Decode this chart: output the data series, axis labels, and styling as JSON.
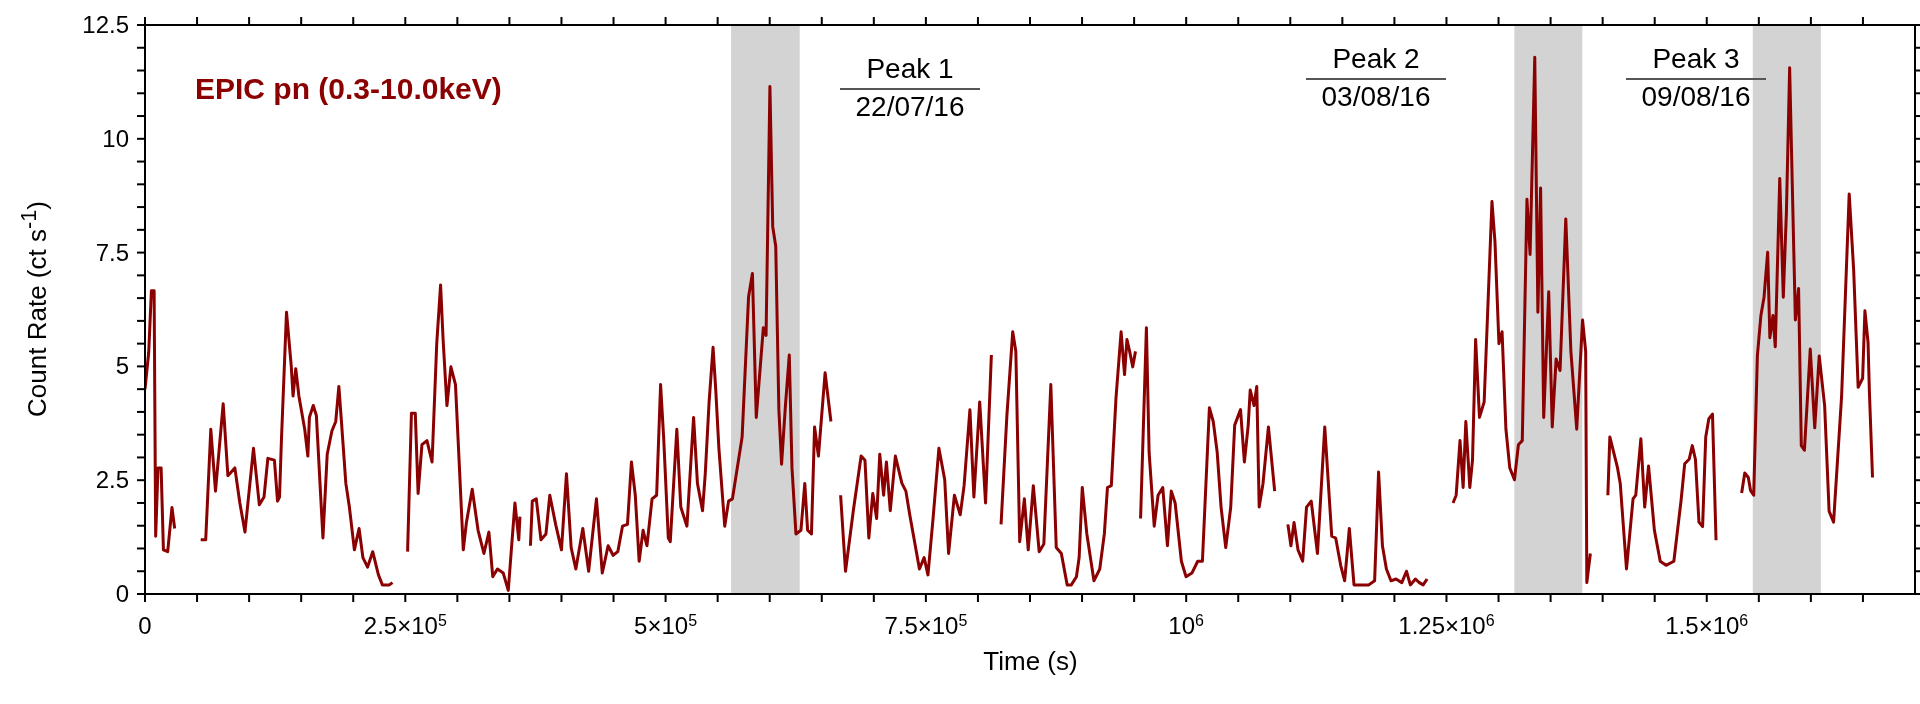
{
  "chart_data": {
    "type": "line",
    "xlabel": "Time (s)",
    "ylabel": "Count Rate (ct s$^{-1}$)",
    "annotations": [
      "Peak 1",
      "22/07/16",
      "Peak 2",
      "03/08/16",
      "Peak 3",
      "09/08/16"
    ],
    "xlim": [
      0,
      1700000
    ],
    "ylim": [
      0,
      12.5
    ],
    "xticks": [
      0,
      {
        "value": 50000,
        "label": null
      },
      {
        "value": 100000,
        "label": null
      },
      {
        "value": 150000,
        "label": null
      },
      {
        "value": 200000,
        "label": null
      },
      {
        "value": 250000,
        "label": "2.5×10$^{5}$"
      },
      {
        "value": 300000,
        "label": null
      },
      {
        "value": 350000,
        "label": null
      },
      {
        "value": 400000,
        "label": null
      },
      {
        "value": 450000,
        "label": null
      },
      {
        "value": 500000,
        "label": "5×10$^{5}$"
      },
      {
        "value": 550000,
        "label": null
      },
      {
        "value": 600000,
        "label": null
      },
      {
        "value": 650000,
        "label": null
      },
      {
        "value": 700000,
        "label": null
      },
      {
        "value": 750000,
        "label": "7.5×10$^{5}$"
      },
      {
        "value": 800000,
        "label": null
      },
      {
        "value": 850000,
        "label": null
      },
      {
        "value": 900000,
        "label": null
      },
      {
        "value": 950000,
        "label": null
      },
      {
        "value": 1000000,
        "label": "10$^{6}$"
      },
      {
        "value": 1050000,
        "label": null
      },
      {
        "value": 1100000,
        "label": null
      },
      {
        "value": 1150000,
        "label": null
      },
      {
        "value": 1200000,
        "label": null
      },
      {
        "value": 1250000,
        "label": "1.25×10$^{6}$"
      },
      {
        "value": 1300000,
        "label": null
      },
      {
        "value": 1350000,
        "label": null
      },
      {
        "value": 1400000,
        "label": null
      },
      {
        "value": 1450000,
        "label": null
      },
      {
        "value": 1500000,
        "label": "1.5×10$^{6}$"
      },
      {
        "value": 1550000,
        "label": null
      },
      {
        "value": 1600000,
        "label": null
      },
      {
        "value": 1650000,
        "label": null
      }
    ],
    "yticks": [
      0,
      {
        "value": 0.5,
        "label": null
      },
      {
        "value": 1,
        "label": null
      },
      {
        "value": 1.5,
        "label": null
      },
      {
        "value": 2,
        "label": null
      },
      2.5,
      {
        "value": 3,
        "label": null
      },
      {
        "value": 3.5,
        "label": null
      },
      {
        "value": 4,
        "label": null
      },
      {
        "value": 4.5,
        "label": null
      },
      5,
      {
        "value": 5.5,
        "label": null
      },
      {
        "value": 6,
        "label": null
      },
      {
        "value": 6.5,
        "label": null
      },
      {
        "value": 7,
        "label": null
      },
      7.5,
      {
        "value": 8,
        "label": null
      },
      {
        "value": 8.5,
        "label": null
      },
      {
        "value": 9,
        "label": null
      },
      {
        "value": 9.5,
        "label": null
      },
      10,
      {
        "value": 10.5,
        "label": null
      },
      {
        "value": 11,
        "label": null
      },
      {
        "value": 11.5,
        "label": null
      },
      {
        "value": 12,
        "label": null
      },
      12.5
    ],
    "bands": [
      {
        "axis": "x",
        "from": 562900,
        "to": 628800,
        "color": "#d3d3d3"
      },
      {
        "axis": "x",
        "from": 1315200,
        "to": 1380500,
        "color": "#d3d3d3"
      },
      {
        "axis": "x",
        "from": 1544200,
        "to": 1609600,
        "color": "#d3d3d3"
      }
    ],
    "marker": "none",
    "series": [
      {
        "name": "EPIC pn (0.3-10.0keV)",
        "color": "#8b0000",
        "x": [
          0,
          3540,
          6150,
          8760,
          10250,
          12490,
          15470,
          17700,
          21800,
          25900,
          28500,
          41000,
          53500,
          58300,
          63200,
          67700,
          75100,
          79600,
          86300,
          91100,
          96000,
          104200,
          109800,
          114300,
          118000,
          124300,
          127300,
          129200,
          131000,
          135900,
          140400,
          142200,
          144800,
          147800,
          153400,
          156400,
          157900,
          161600,
          164600,
          170900,
          175000,
          179500,
          183200,
          186200,
          188800,
          192900,
          196300,
          201100,
          205600,
          209300,
          213800,
          218700,
          224200,
          228000,
          234700,
          237700,
          245000,
          252200,
          255900,
          259600,
          262300,
          266000,
          270800,
          275700,
          280200,
          283900,
          286300,
          290000,
          293800,
          298200,
          302000,
          305700,
          308700,
          314300,
          319900,
          325500,
          330300,
          334000,
          338500,
          344100,
          348900,
          355300,
          359000,
          360100,
          365000,
          370200,
          372000,
          375800,
          380300,
          385100,
          388800,
          394400,
          400000,
          404800,
          409300,
          413800,
          420500,
          426100,
          433600,
          439200,
          444800,
          449600,
          454100,
          458600,
          463400,
          467200,
          470900,
          474600,
          478400,
          482100,
          487000,
          491400,
          495200,
          498200,
          502600,
          504500,
          510800,
          514600,
          520500,
          526900,
          530600,
          535500,
          538100,
          541800,
          545600,
          548200,
          551200,
          556800,
          560500,
          564200,
          573500,
          579700,
          583400,
          587100,
          593900,
          596500,
          600200,
          602900,
          605800,
          608800,
          611400,
          615100,
          618800,
          621400,
          625200,
          630000,
          633700,
          636400,
          640100,
          643100,
          646800,
          653200,
          658800,
          663000,
          668100,
          672800,
          680300,
          687800,
          691500,
          695200,
          699000,
          702700,
          705700,
          709400,
          712100,
          715800,
          720700,
          727000,
          730800,
          734500,
          738200,
          743800,
          748300,
          752000,
          756900,
          762500,
          768100,
          771800,
          777400,
          783000,
          786700,
          792300,
          796100,
          801700,
          807300,
          812900,
          817500,
          822200,
          827800,
          833400,
          836400,
          840100,
          844600,
          848300,
          853200,
          858800,
          863300,
          870000,
          875200,
          880100,
          885700,
          889700,
          894600,
          897200,
          900200,
          904600,
          911400,
          917000,
          921400,
          924400,
          928100,
          932600,
          937500,
          940800,
          943100,
          945700,
          948700,
          951300,
          953700,
          956200,
          961800,
          964400,
          969300,
          973000,
          977500,
          982000,
          985700,
          989400,
          995400,
          999900,
          1005500,
          1011100,
          1015600,
          1022300,
          1026000,
          1029800,
          1033500,
          1038000,
          1042800,
          1046600,
          1052200,
          1055900,
          1059600,
          1061500,
          1065200,
          1067800,
          1070100,
          1073800,
          1079000,
          1085000,
          1091000,
          1097700,
          1100600,
          1103600,
          1107400,
          1111900,
          1115600,
          1120100,
          1126100,
          1133100,
          1139800,
          1143600,
          1148400,
          1152200,
          1156700,
          1161200,
          1167900,
          1175400,
          1181000,
          1184800,
          1188500,
          1192300,
          1196700,
          1201500,
          1207100,
          1211600,
          1215300,
          1220200,
          1223900,
          1227600,
          1231400,
          1243000,
          1256300,
          1259300,
          1263000,
          1266000,
          1268600,
          1272400,
          1275000,
          1278000,
          1281700,
          1286200,
          1293700,
          1296600,
          1300400,
          1303400,
          1307100,
          1310800,
          1315300,
          1319100,
          1322800,
          1327300,
          1330300,
          1334800,
          1337800,
          1340400,
          1343400,
          1348200,
          1351600,
          1355300,
          1359100,
          1364600,
          1369500,
          1375100,
          1380700,
          1383700,
          1384800,
          1388200,
          1396000,
          1405000,
          1406900,
          1414300,
          1416900,
          1422900,
          1429200,
          1431800,
          1436700,
          1440400,
          1444100,
          1449700,
          1455300,
          1460900,
          1468400,
          1475400,
          1478800,
          1483100,
          1486100,
          1489100,
          1492500,
          1496000,
          1499000,
          1502000,
          1505500,
          1508900,
          1521000,
          1533500,
          1536500,
          1539900,
          1542100,
          1545100,
          1548600,
          1552000,
          1555000,
          1558500,
          1560600,
          1563600,
          1565800,
          1570100,
          1573500,
          1576500,
          1579600,
          1582100,
          1585100,
          1588200,
          1590800,
          1593800,
          1599400,
          1603700,
          1608000,
          1613200,
          1617500,
          1621800,
          1629500,
          1636800,
          1641100,
          1645400,
          1649700,
          1651900,
          1654900,
          1656200,
          1659200
        ],
        "values": [
          4.5,
          5.3,
          6.66,
          6.66,
          1.27,
          2.77,
          2.77,
          0.97,
          0.93,
          1.9,
          1.44,
          null,
          1.19,
          1.19,
          3.62,
          2.26,
          4.18,
          2.6,
          2.77,
          2.0,
          1.36,
          3.2,
          1.96,
          2.13,
          2.98,
          2.94,
          2.04,
          2.13,
          3.36,
          6.19,
          5.03,
          4.35,
          4.95,
          4.35,
          3.62,
          3.03,
          3.88,
          4.14,
          3.92,
          1.23,
          3.07,
          3.58,
          3.79,
          4.56,
          3.75,
          2.43,
          1.91,
          0.97,
          1.44,
          0.8,
          0.59,
          0.93,
          0.42,
          0.2,
          0.2,
          0.25,
          null,
          0.93,
          3.97,
          3.97,
          2.21,
          3.28,
          3.37,
          2.9,
          5.5,
          6.79,
          5.59,
          4.14,
          4.99,
          4.6,
          2.77,
          0.97,
          1.57,
          2.3,
          1.4,
          0.89,
          1.36,
          0.38,
          0.55,
          0.46,
          0.08,
          2.0,
          1.19,
          1.7,
          null,
          1.06,
          2.04,
          2.09,
          1.19,
          1.32,
          2.17,
          1.53,
          0.97,
          2.64,
          1.02,
          0.55,
          1.44,
          0.5,
          2.09,
          0.46,
          1.06,
          0.85,
          0.93,
          1.49,
          1.53,
          2.9,
          2.17,
          0.72,
          1.4,
          1.06,
          2.09,
          2.17,
          4.6,
          3.41,
          1.23,
          1.15,
          3.62,
          1.91,
          1.49,
          3.88,
          2.43,
          1.83,
          2.64,
          4.22,
          5.42,
          4.48,
          3.2,
          1.49,
          2.04,
          2.09,
          3.45,
          6.53,
          7.04,
          3.88,
          5.85,
          5.68,
          11.15,
          8.07,
          7.64,
          4.05,
          2.85,
          4.14,
          5.25,
          2.77,
          1.32,
          1.4,
          2.43,
          1.4,
          1.32,
          3.67,
          3.03,
          4.86,
          3.79,
          null,
          2.17,
          0.5,
          1.83,
          3.03,
          2.94,
          1.23,
          2.21,
          1.66,
          3.07,
          2.17,
          2.9,
          1.83,
          3.03,
          2.43,
          2.26,
          1.74,
          1.27,
          0.55,
          0.8,
          0.42,
          1.66,
          3.2,
          2.51,
          0.89,
          2.17,
          1.74,
          2.38,
          4.05,
          2.13,
          4.22,
          2.0,
          5.25,
          null,
          1.53,
          3.92,
          5.76,
          5.33,
          1.15,
          2.09,
          0.97,
          2.38,
          0.93,
          1.1,
          4.6,
          1.02,
          0.89,
          0.2,
          0.2,
          0.38,
          0.8,
          2.34,
          1.32,
          0.29,
          0.55,
          1.32,
          2.34,
          2.38,
          4.31,
          5.76,
          4.82,
          5.59,
          5.33,
          4.99,
          5.33,
          null,
          1.66,
          5.85,
          3.11,
          1.49,
          2.17,
          2.34,
          1.06,
          2.26,
          2.0,
          0.72,
          0.38,
          0.46,
          0.72,
          0.72,
          4.09,
          3.79,
          3.11,
          1.91,
          1.02,
          1.91,
          3.71,
          4.05,
          2.9,
          3.71,
          4.48,
          4.14,
          4.56,
          1.91,
          2.43,
          3.67,
          2.26,
          null,
          1.53,
          1.06,
          1.57,
          0.97,
          0.72,
          1.91,
          2.04,
          0.89,
          3.67,
          1.27,
          1.23,
          0.63,
          0.29,
          1.44,
          0.2,
          0.2,
          0.2,
          0.29,
          2.68,
          1.06,
          0.55,
          0.29,
          0.33,
          0.25,
          0.5,
          0.2,
          0.33,
          0.25,
          0.2,
          0.33,
          null,
          2.0,
          2.17,
          3.37,
          2.34,
          3.79,
          2.34,
          2.94,
          5.59,
          3.88,
          4.22,
          8.62,
          7.73,
          5.5,
          5.76,
          3.62,
          2.77,
          2.51,
          3.28,
          3.37,
          8.67,
          7.46,
          11.79,
          6.19,
          8.92,
          3.88,
          6.64,
          3.67,
          5.16,
          4.91,
          8.24,
          5.33,
          3.62,
          6.02,
          5.33,
          0.25,
          0.89,
          null,
          2.17,
          3.45,
          2.77,
          2.43,
          0.55,
          2.09,
          2.17,
          3.41,
          1.91,
          2.81,
          1.4,
          0.72,
          0.63,
          0.72,
          2.07,
          2.86,
          2.96,
          3.26,
          2.96,
          1.58,
          1.48,
          3.45,
          3.85,
          3.95,
          1.18,
          null,
          2.22,
          2.66,
          2.56,
          2.27,
          2.17,
          5.23,
          6.12,
          6.52,
          7.51,
          5.63,
          6.12,
          5.43,
          9.13,
          6.52,
          8.39,
          11.56,
          9.03,
          6.02,
          6.71,
          3.26,
          3.16,
          5.38,
          3.65,
          5.23,
          4.14,
          1.82,
          1.58,
          4.34,
          8.79,
          7.11,
          4.54,
          4.74,
          6.22,
          5.53,
          4.44,
          2.56
        ]
      }
    ]
  }
}
